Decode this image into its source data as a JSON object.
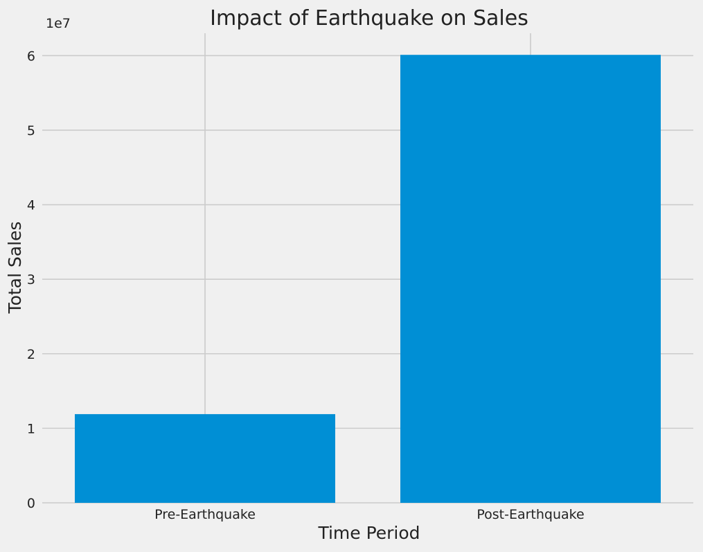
{
  "chart_data": {
    "type": "bar",
    "title": "Impact of Earthquake on Sales",
    "xlabel": "Time Period",
    "ylabel": "Total Sales",
    "categories": [
      "Pre-Earthquake",
      "Post-Earthquake"
    ],
    "values": [
      11900000,
      60100000
    ],
    "ylim": [
      0,
      63000000
    ],
    "yticks": [
      0,
      10000000,
      20000000,
      30000000,
      40000000,
      50000000,
      60000000
    ],
    "ytick_labels": [
      "0",
      "1",
      "2",
      "3",
      "4",
      "5",
      "6"
    ],
    "y_offset_label": "1e7",
    "grid": true,
    "bar_color": "#008fd5",
    "background_color": "#f0f0f0",
    "grid_color": "#cbcbcb"
  }
}
